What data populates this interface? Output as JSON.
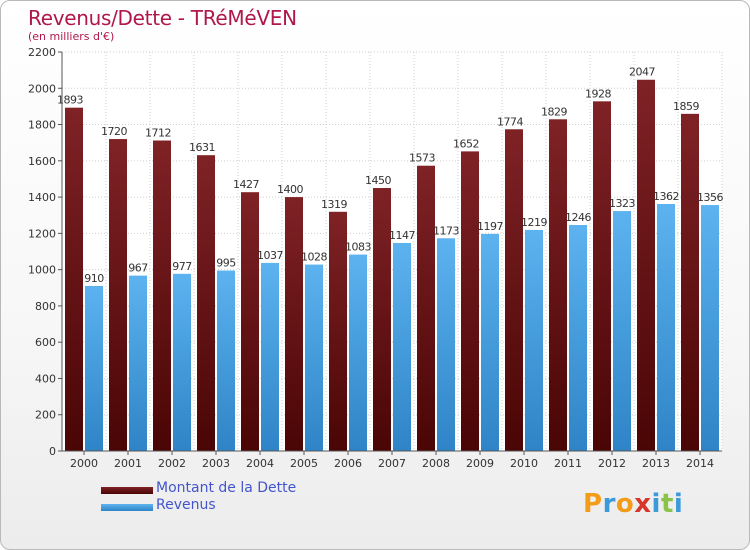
{
  "title": "Revenus/Dette - TRéMéVEN",
  "subtitle": "(en milliers d'€)",
  "colors": {
    "debt": "#7a1c20",
    "debt_dark": "#4a0606",
    "revenue": "#55acec",
    "revenue_dark": "#2b82c4",
    "title": "#b0184a",
    "legend_text": "#4455cc"
  },
  "legend": {
    "debt_label": "Montant de la Dette",
    "revenue_label": "Revenus"
  },
  "logo": {
    "text": "Proxiti",
    "letters": [
      "P",
      "r",
      "o",
      "x",
      "i",
      "t",
      "i"
    ],
    "letter_colors": [
      "#f39c1a",
      "#3b9ad9",
      "#f39c1a",
      "#d7362b",
      "#3b9ad9",
      "#8bc34a",
      "#3b9ad9"
    ]
  },
  "chart_data": {
    "type": "bar",
    "categories": [
      "2000",
      "2001",
      "2002",
      "2003",
      "2004",
      "2005",
      "2006",
      "2007",
      "2008",
      "2009",
      "2010",
      "2011",
      "2012",
      "2013",
      "2014"
    ],
    "series": [
      {
        "name": "Montant de la Dette",
        "values": [
          1893,
          1720,
          1712,
          1631,
          1427,
          1400,
          1319,
          1450,
          1573,
          1652,
          1774,
          1829,
          1928,
          2047,
          1859
        ]
      },
      {
        "name": "Revenus",
        "values": [
          910,
          967,
          977,
          995,
          1037,
          1028,
          1083,
          1147,
          1173,
          1197,
          1219,
          1246,
          1323,
          1362,
          1356
        ]
      }
    ],
    "ylim": [
      0,
      2200
    ],
    "yticks": [
      0,
      200,
      400,
      600,
      800,
      1000,
      1200,
      1400,
      1600,
      1800,
      2000,
      2200
    ],
    "grid": true,
    "legend_position": "bottom-left"
  }
}
